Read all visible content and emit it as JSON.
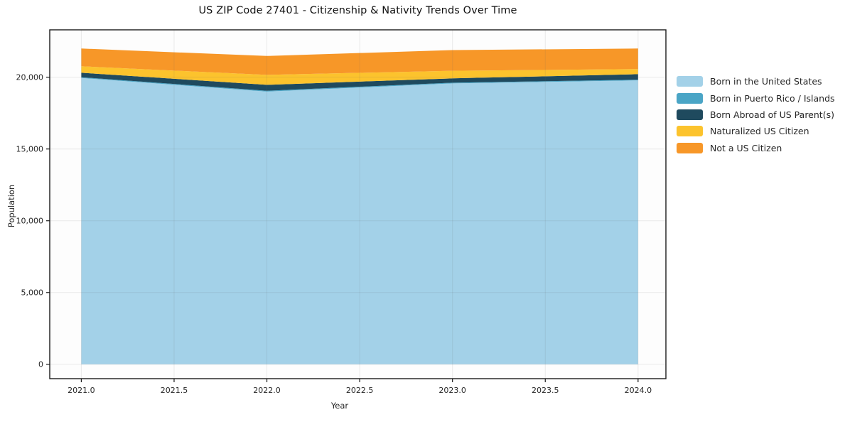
{
  "title": "US ZIP Code 27401 - Citizenship & Nativity Trends Over Time",
  "chart_data": {
    "type": "area",
    "stacked": true,
    "title": "US ZIP Code 27401 - Citizenship & Nativity Trends Over Time",
    "xlabel": "Year",
    "ylabel": "Population",
    "x": [
      2021,
      2022,
      2023,
      2024
    ],
    "series": [
      {
        "name": "Born in the United States",
        "color": "#A3D1E8",
        "values": [
          19950,
          19000,
          19570,
          19780
        ]
      },
      {
        "name": "Born in Puerto Rico / Islands",
        "color": "#4AA5C6",
        "values": [
          50,
          60,
          50,
          50
        ]
      },
      {
        "name": "Born Abroad of US Parent(s)",
        "color": "#1F4A5E",
        "values": [
          310,
          410,
          300,
          380
        ]
      },
      {
        "name": "Naturalized US Citizen",
        "color": "#FCC32D",
        "values": [
          450,
          690,
          530,
          360
        ]
      },
      {
        "name": "Not a US Citizen",
        "color": "#F79728",
        "values": [
          1240,
          1320,
          1440,
          1430
        ]
      }
    ],
    "totals": [
      22000,
      21480,
      21890,
      22000
    ],
    "xlim": [
      2020.83,
      2024.15
    ],
    "ylim": [
      -1000,
      23300
    ],
    "xticks": {
      "values": [
        2021.0,
        2021.5,
        2022.0,
        2022.5,
        2023.0,
        2023.5,
        2024.0
      ],
      "labels": [
        "2021.0",
        "2021.5",
        "2022.0",
        "2022.5",
        "2023.0",
        "2023.5",
        "2024.0"
      ]
    },
    "yticks": {
      "values": [
        0,
        5000,
        10000,
        15000,
        20000
      ],
      "labels": [
        "0",
        "5,000",
        "10,000",
        "15,000",
        "20,000"
      ]
    },
    "grid": true,
    "legend_position": "right-outside",
    "colors": {
      "spine": "#1a1a1a",
      "tick_text": "#262626",
      "grid_overlay": "rgba(102,102,102,0.13)"
    }
  }
}
